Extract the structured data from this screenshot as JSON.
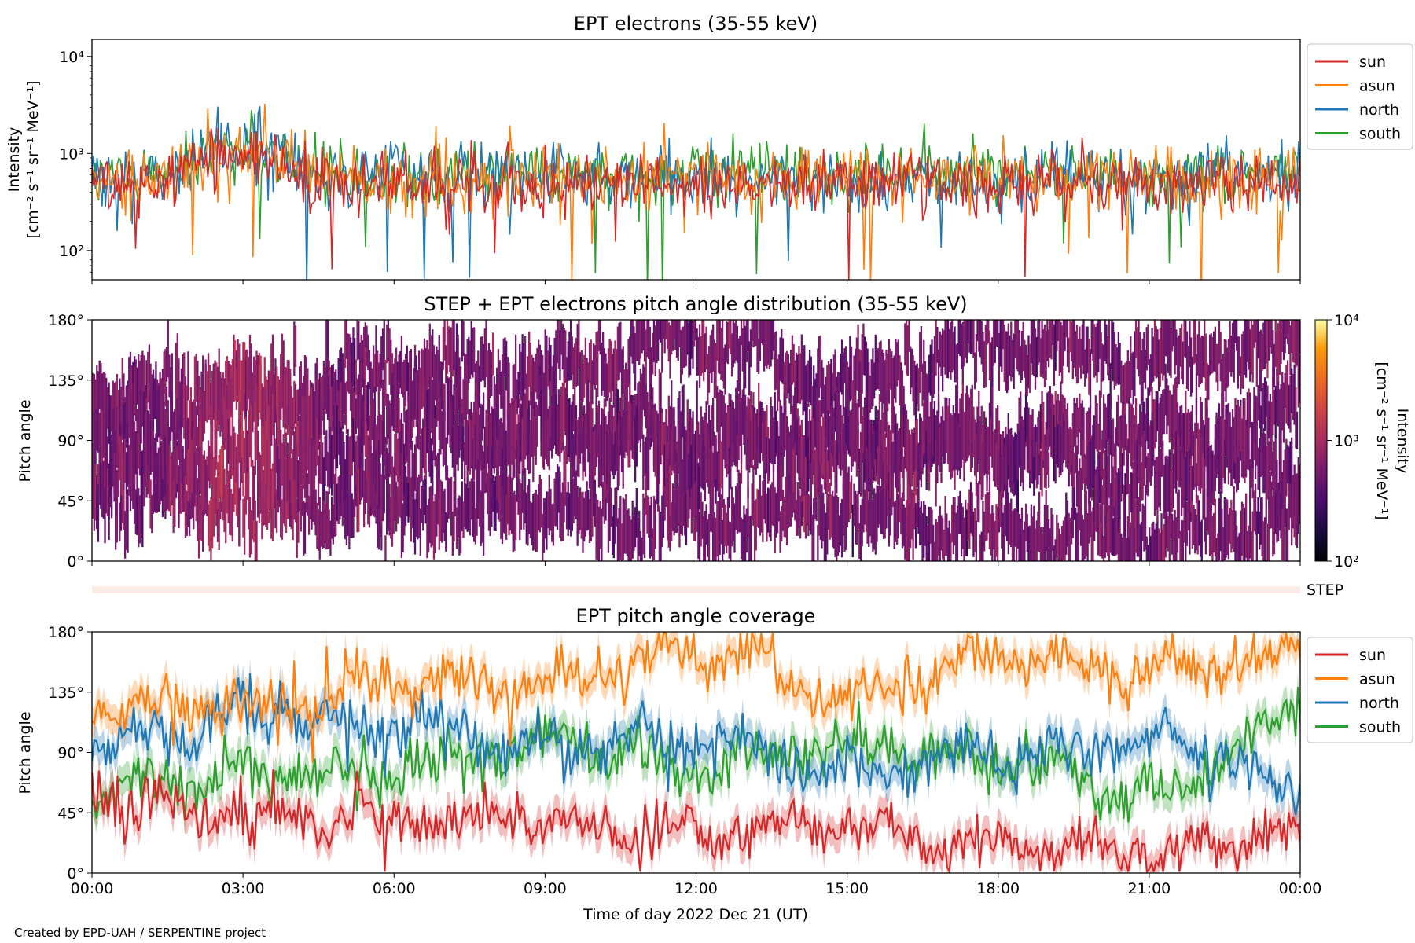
{
  "credit": "Created by EPD-UAH / SERPENTINE project",
  "colors": {
    "sun": "#d62728",
    "asun": "#ff7f0e",
    "north": "#1f77b4",
    "south": "#2ca02c"
  },
  "chart_data": [
    {
      "type": "line",
      "title": "EPT electrons (35-55 keV)",
      "ylabel_line1": "Intensity",
      "ylabel_line2": "[cm⁻² s⁻¹ sr⁻¹ MeV⁻¹]",
      "yscale": "log",
      "ylim": [
        50,
        15000
      ],
      "yticks": [
        {
          "v": 100,
          "label": "10²"
        },
        {
          "v": 1000,
          "label": "10³"
        },
        {
          "v": 10000,
          "label": "10⁴"
        }
      ],
      "xlim_hours": [
        0,
        24
      ],
      "legend_position": "outside-right-top",
      "series": [
        {
          "name": "sun",
          "typical": 500,
          "spread": 0.17
        },
        {
          "name": "asun",
          "typical": 560,
          "spread": 0.17
        },
        {
          "name": "north",
          "typical": 580,
          "spread": 0.16
        },
        {
          "name": "south",
          "typical": 600,
          "spread": 0.16
        }
      ],
      "early_enhancement": {
        "start_hour": 1.5,
        "end_hour": 4.5,
        "peak": 1600
      }
    },
    {
      "type": "heatmap",
      "title": "STEP + EPT electrons pitch angle distribution (35-55 keV)",
      "ylabel": "Pitch angle",
      "ylim": [
        0,
        180
      ],
      "yticks": [
        "0°",
        "45°",
        "90°",
        "135°",
        "180°"
      ],
      "colorscale": "inferno",
      "color_scale": "log",
      "color_range": [
        100,
        10000
      ],
      "colorbar_ticks": [
        {
          "v": 100,
          "label": "10²"
        },
        {
          "v": 1000,
          "label": "10³"
        },
        {
          "v": 10000,
          "label": "10⁴"
        }
      ],
      "colorbar_label_line1": "Intensity",
      "colorbar_label_line2": "[cm⁻² s⁻¹ sr⁻¹ MeV⁻¹]",
      "typical_intensity": 550
    },
    {
      "type": "heatmap",
      "label": "STEP",
      "note": "single thin strip, near-empty"
    },
    {
      "type": "line",
      "title": "EPT pitch angle coverage",
      "ylabel": "Pitch angle",
      "ylim": [
        0,
        180
      ],
      "yticks": [
        "0°",
        "45°",
        "90°",
        "135°",
        "180°"
      ],
      "xlabel": "Time of day 2022 Dec 21 (UT)",
      "xticks": [
        "00:00",
        "03:00",
        "06:00",
        "09:00",
        "12:00",
        "15:00",
        "18:00",
        "21:00",
        "00:00"
      ],
      "legend_position": "outside-right-top",
      "band_halfwidth_deg": 11,
      "series": [
        {
          "name": "sun",
          "hours": [
            0,
            3,
            6,
            9,
            12,
            15,
            18,
            21,
            24
          ],
          "values": [
            58,
            42,
            42,
            38,
            28,
            35,
            18,
            15,
            30
          ]
        },
        {
          "name": "asun",
          "hours": [
            0,
            3,
            6,
            9,
            12,
            15,
            18,
            21,
            24
          ],
          "values": [
            128,
            125,
            140,
            145,
            165,
            130,
            160,
            150,
            160
          ]
        },
        {
          "name": "north",
          "hours": [
            0,
            3,
            6,
            9,
            12,
            15,
            18,
            21,
            24
          ],
          "values": [
            95,
            120,
            110,
            95,
            100,
            75,
            90,
            100,
            65
          ]
        },
        {
          "name": "south",
          "hours": [
            0,
            3,
            6,
            9,
            12,
            15,
            18,
            21,
            24
          ],
          "values": [
            60,
            75,
            75,
            100,
            80,
            95,
            85,
            60,
            115
          ]
        }
      ]
    }
  ]
}
